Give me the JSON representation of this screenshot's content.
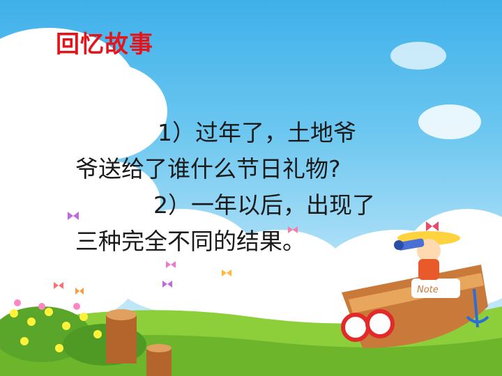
{
  "slide": {
    "title": "回忆故事",
    "lines": [
      "1）过年了，土地爷",
      "爷送给了谁什么节日礼物?",
      "2）一年以后，出现了",
      "三种完全不同的结果。"
    ]
  },
  "colors": {
    "title": "#e5141b",
    "text": "#1a1a1a",
    "sky_top": "#3fb0ea",
    "grass": "#8ccf3a"
  },
  "illustration": {
    "scene": "cartoon-sky-meadow",
    "icons": [
      "cloud-icon",
      "butterfly-icon",
      "flower-icon",
      "tree-stump-icon",
      "boat-icon",
      "child-with-telescope-icon"
    ]
  }
}
